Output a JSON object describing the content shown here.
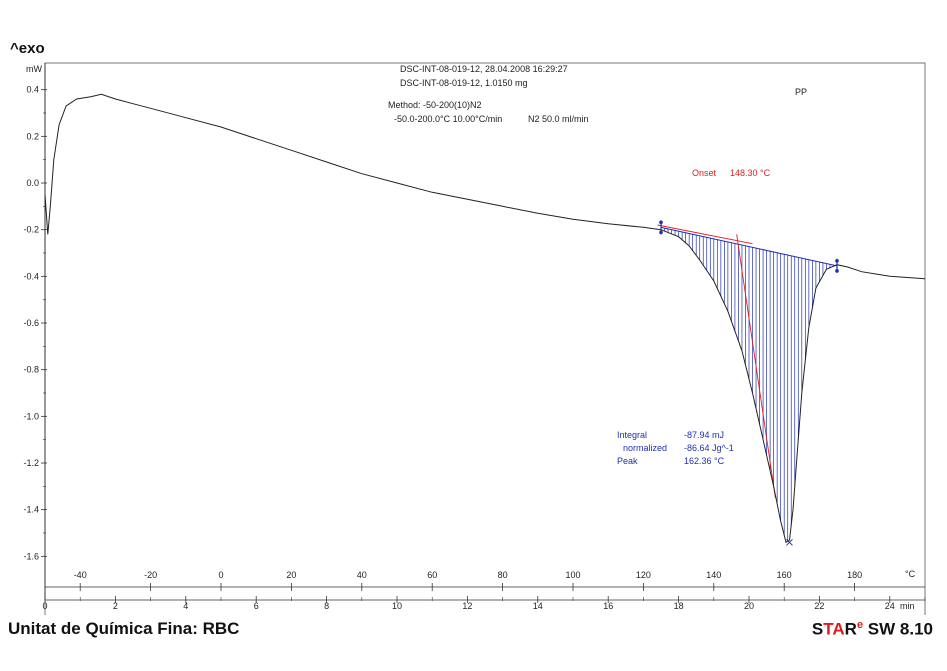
{
  "header": {
    "exo_label": "^exo",
    "info_line1": "DSC-INT-08-019-12, 28.04.2008 16:29:27",
    "info_line2": "DSC-INT-08-019-12, 1.0150 mg",
    "method_line1": "Method: -50-200(10)N2",
    "method_line2_a": "-50.0-200.0°C 10.00°C/min",
    "method_line2_b": "N2 50.0 ml/min",
    "sample": "PP"
  },
  "footer": {
    "left": "Unitat de Química Fina: RBC",
    "right_s": "S",
    "right_ta": "TA",
    "right_r": "R",
    "right_e": "e",
    "right_rest": " SW 8.10"
  },
  "colors": {
    "curve": "#222222",
    "integral": "#2030b0",
    "onset": "#e02020",
    "axis": "#333333"
  },
  "chart_data": {
    "type": "line",
    "ylabel": "mW",
    "ylim": [
      -1.65,
      0.45
    ],
    "y_ticks": [
      "0.4",
      "0.2",
      "0.0",
      "-0.2",
      "-0.4",
      "-0.6",
      "-0.8",
      "-1.0",
      "-1.2",
      "-1.4",
      "-1.6"
    ],
    "x_temp_unit": "°C",
    "x_temp_ticks": [
      "-40",
      "-20",
      "0",
      "20",
      "40",
      "60",
      "80",
      "100",
      "120",
      "140",
      "160",
      "180"
    ],
    "x_time_unit": "min",
    "x_time_ticks": [
      "0",
      "2",
      "4",
      "6",
      "8",
      "10",
      "12",
      "14",
      "16",
      "18",
      "20",
      "22",
      "24"
    ],
    "xlim_min": [
      0,
      25
    ],
    "series": [
      {
        "x": [
          0.0,
          0.08,
          0.15,
          0.25,
          0.4,
          0.6,
          0.9,
          1.3,
          1.6,
          2.0,
          2.5,
          3.0,
          4.0,
          5.0,
          6.0,
          7.0,
          8.0,
          9.0,
          10.0,
          11.0,
          12.0,
          13.0,
          14.0,
          15.0,
          16.0,
          17.0,
          17.5,
          18.0,
          18.3,
          18.6,
          19.0,
          19.4,
          19.8,
          20.1,
          20.4,
          20.7,
          20.9,
          21.05,
          21.15,
          21.25,
          21.35,
          21.5,
          21.7,
          21.9,
          22.2,
          22.5,
          22.8,
          23.2,
          23.6,
          24.0,
          24.5,
          25.0
        ],
        "y": [
          -0.05,
          -0.22,
          -0.1,
          0.1,
          0.25,
          0.33,
          0.36,
          0.37,
          0.38,
          0.36,
          0.34,
          0.32,
          0.28,
          0.24,
          0.19,
          0.14,
          0.09,
          0.04,
          0.0,
          -0.04,
          -0.07,
          -0.1,
          -0.13,
          -0.155,
          -0.175,
          -0.19,
          -0.2,
          -0.23,
          -0.27,
          -0.33,
          -0.42,
          -0.55,
          -0.72,
          -0.9,
          -1.1,
          -1.3,
          -1.45,
          -1.54,
          -1.53,
          -1.4,
          -1.2,
          -0.9,
          -0.62,
          -0.45,
          -0.37,
          -0.35,
          -0.36,
          -0.38,
          -0.39,
          -0.4,
          -0.405,
          -0.41
        ]
      }
    ],
    "integral": {
      "start_x": 17.5,
      "start_y": -0.19,
      "end_x": 22.5,
      "end_y": -0.355
    },
    "onset_tangent": {
      "x": [
        17.4,
        20.1
      ],
      "y": [
        -0.18,
        -0.26
      ]
    },
    "onset_steep": {
      "x": [
        19.65,
        20.75
      ],
      "y": [
        -0.22,
        -1.35
      ]
    },
    "annotations": {
      "onset_label": "Onset",
      "onset_value": "148.30 °C",
      "integral_label": "Integral",
      "integral_value": "-87.94 mJ",
      "normalized_label": "normalized",
      "normalized_value": "-86.64 Jg^-1",
      "peak_label": "Peak",
      "peak_value": "162.36 °C"
    }
  }
}
